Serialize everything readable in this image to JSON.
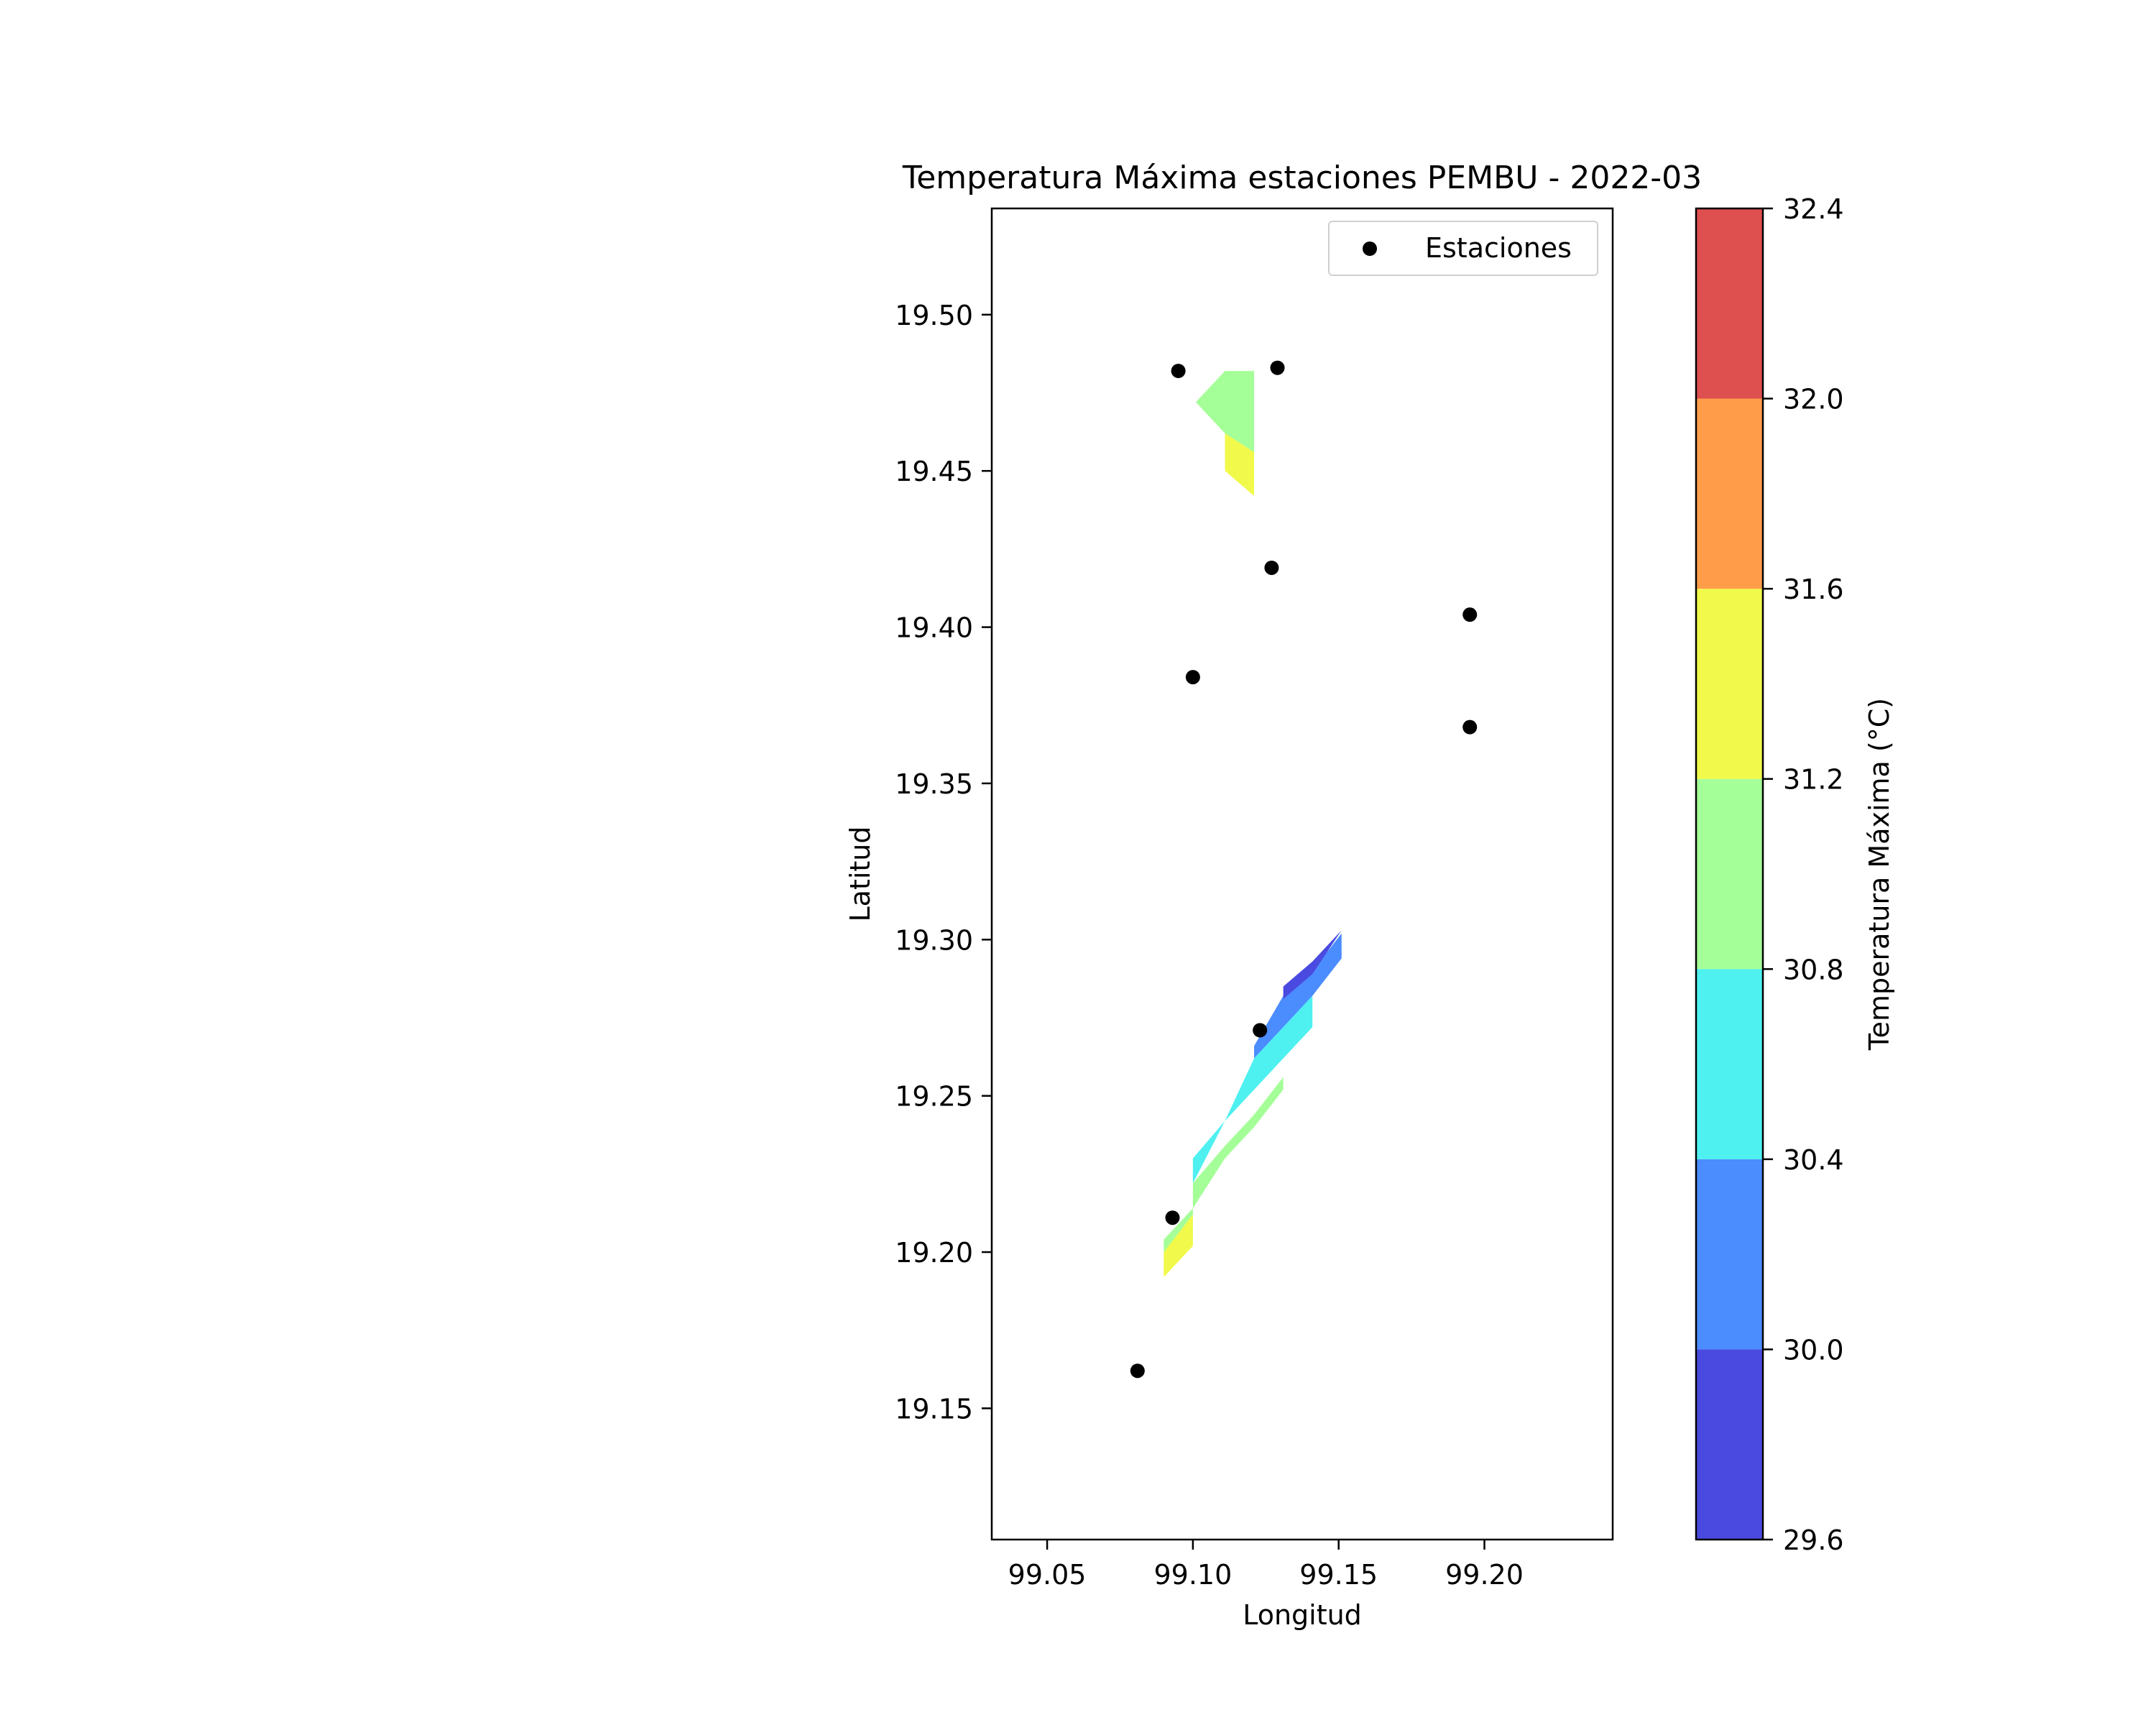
{
  "chart_data": {
    "type": "scatter",
    "title": "Temperatura Máxima estaciones PEMBU - 2022-03",
    "xlabel": "Longitud",
    "ylabel": "Latitud",
    "xlim": [
      99.031,
      99.244
    ],
    "ylim": [
      19.108,
      19.534
    ],
    "xticks": [
      "99.05",
      "99.10",
      "99.15",
      "99.20"
    ],
    "yticks": [
      "19.15",
      "19.20",
      "19.25",
      "19.30",
      "19.35",
      "19.40",
      "19.45",
      "19.50"
    ],
    "grid": false,
    "legend": {
      "position": "top-right",
      "entries": [
        "Estaciones"
      ]
    },
    "stations": {
      "name": "Estaciones",
      "color": "#000000",
      "points": [
        {
          "x": 99.095,
          "y": 19.482
        },
        {
          "x": 99.129,
          "y": 19.483
        },
        {
          "x": 99.127,
          "y": 19.419
        },
        {
          "x": 99.195,
          "y": 19.404
        },
        {
          "x": 99.1,
          "y": 19.384
        },
        {
          "x": 99.195,
          "y": 19.368
        },
        {
          "x": 99.123,
          "y": 19.271
        },
        {
          "x": 99.093,
          "y": 19.211
        },
        {
          "x": 99.081,
          "y": 19.162
        }
      ]
    },
    "contour_regions": [
      {
        "level": 31.0,
        "color": "#a5ff98",
        "points": [
          [
            99.101,
            19.472
          ],
          [
            99.111,
            19.482
          ],
          [
            99.121,
            19.482
          ],
          [
            99.121,
            19.456
          ],
          [
            99.111,
            19.462
          ]
        ]
      },
      {
        "level": 31.4,
        "color": "#f1f94a",
        "points": [
          [
            99.111,
            19.462
          ],
          [
            99.121,
            19.456
          ],
          [
            99.121,
            19.442
          ],
          [
            99.111,
            19.45
          ]
        ]
      },
      {
        "level": 30.2,
        "color": "#4b8cff",
        "points": [
          [
            99.121,
            19.262
          ],
          [
            99.131,
            19.272
          ],
          [
            99.141,
            19.282
          ],
          [
            99.151,
            19.294
          ],
          [
            99.151,
            19.302
          ],
          [
            99.141,
            19.29
          ],
          [
            99.131,
            19.282
          ],
          [
            99.121,
            19.266
          ]
        ]
      },
      {
        "level": 29.8,
        "color": "#4a4ae0",
        "points": [
          [
            99.131,
            19.281
          ],
          [
            99.141,
            19.289
          ],
          [
            99.151,
            19.303
          ],
          [
            99.141,
            19.293
          ],
          [
            99.131,
            19.285
          ]
        ]
      },
      {
        "level": 30.6,
        "color": "#4ef0f0",
        "points": [
          [
            99.1,
            19.222
          ],
          [
            99.111,
            19.242
          ],
          [
            99.121,
            19.252
          ],
          [
            99.131,
            19.262
          ],
          [
            99.141,
            19.272
          ],
          [
            99.141,
            19.282
          ],
          [
            99.131,
            19.272
          ],
          [
            99.121,
            19.262
          ],
          [
            99.111,
            19.242
          ],
          [
            99.1,
            19.23
          ]
        ]
      },
      {
        "level": 31.0,
        "color": "#a5ff98",
        "points": [
          [
            99.09,
            19.2
          ],
          [
            99.1,
            19.212
          ],
          [
            99.1,
            19.222
          ],
          [
            99.111,
            19.234
          ],
          [
            99.121,
            19.244
          ],
          [
            99.131,
            19.256
          ],
          [
            99.131,
            19.252
          ],
          [
            99.121,
            19.24
          ],
          [
            99.111,
            19.23
          ],
          [
            99.1,
            19.214
          ],
          [
            99.09,
            19.204
          ]
        ]
      },
      {
        "level": 31.4,
        "color": "#f1f94a",
        "points": [
          [
            99.09,
            19.192
          ],
          [
            99.1,
            19.202
          ],
          [
            99.1,
            19.212
          ],
          [
            99.09,
            19.2
          ]
        ]
      }
    ],
    "colorbar": {
      "label": "Temperatura Máxima (°C)",
      "ticks": [
        "29.6",
        "30.0",
        "30.4",
        "30.8",
        "31.2",
        "31.6",
        "32.0",
        "32.4"
      ],
      "levels": [
        29.6,
        30.0,
        30.4,
        30.8,
        31.2,
        31.6,
        32.0,
        32.4
      ],
      "colors": [
        "#4a4ae0",
        "#4b8cff",
        "#4ef0f0",
        "#a5ff98",
        "#f1f94a",
        "#ff9c4a",
        "#de4f4f"
      ]
    }
  }
}
